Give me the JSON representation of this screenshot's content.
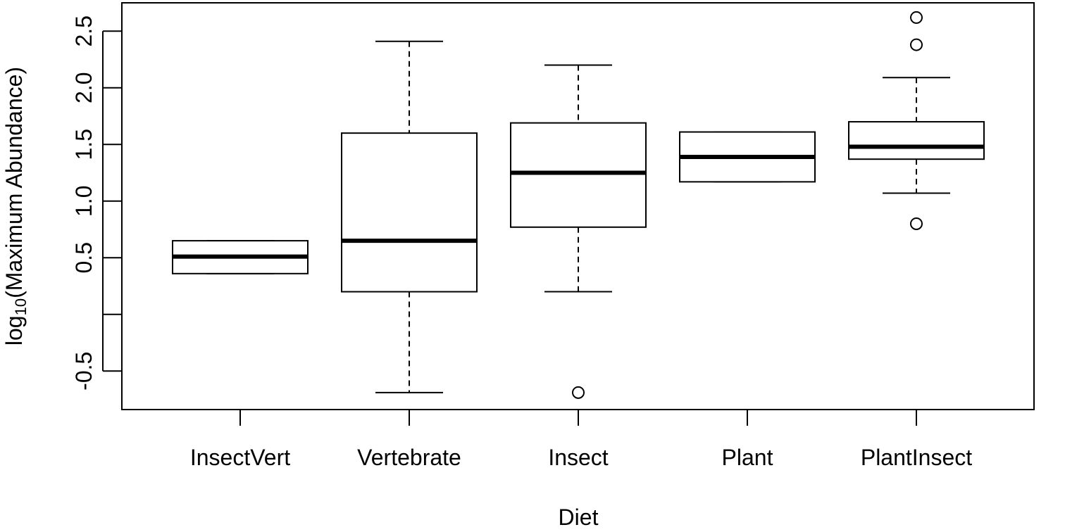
{
  "chart_data": {
    "type": "boxplot",
    "xlabel": "Diet",
    "ylabel_prefix": "log",
    "ylabel_subscript": "10",
    "ylabel_suffix": "(Maximum Abundance)",
    "ylim": [
      -0.84,
      2.75
    ],
    "y_ticks": [
      -0.5,
      0.0,
      0.5,
      1.0,
      1.5,
      2.0,
      2.5
    ],
    "y_tick_labels": [
      "-0.5",
      "",
      "0.5",
      "1.0",
      "1.5",
      "2.0",
      "2.5"
    ],
    "categories": [
      "InsectVert",
      "Vertebrate",
      "Insect",
      "Plant",
      "PlantInsect"
    ],
    "boxes": [
      {
        "name": "InsectVert",
        "whisker_low": 0.36,
        "q1": 0.36,
        "median": 0.51,
        "q3": 0.65,
        "whisker_high": 0.65,
        "outliers": []
      },
      {
        "name": "Vertebrate",
        "whisker_low": -0.69,
        "q1": 0.2,
        "median": 0.65,
        "q3": 1.6,
        "whisker_high": 2.41,
        "outliers": []
      },
      {
        "name": "Insect",
        "whisker_low": 0.2,
        "q1": 0.77,
        "median": 1.25,
        "q3": 1.69,
        "whisker_high": 2.2,
        "outliers": [
          -0.69
        ]
      },
      {
        "name": "Plant",
        "whisker_low": 1.17,
        "q1": 1.17,
        "median": 1.39,
        "q3": 1.61,
        "whisker_high": 1.61,
        "outliers": []
      },
      {
        "name": "PlantInsect",
        "whisker_low": 1.07,
        "q1": 1.37,
        "median": 1.48,
        "q3": 1.7,
        "whisker_high": 2.09,
        "outliers": [
          0.8,
          2.38,
          2.62
        ]
      }
    ]
  }
}
